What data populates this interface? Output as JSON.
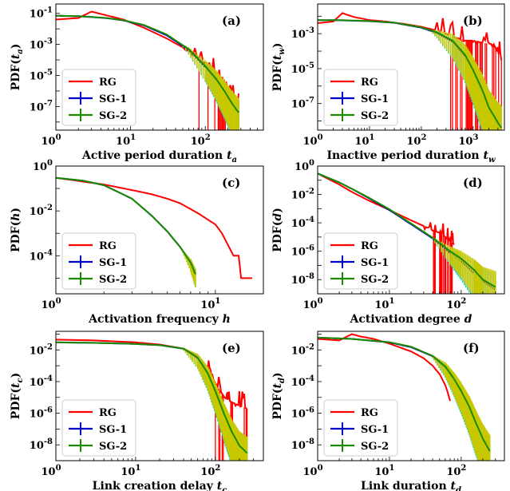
{
  "chart_data": [
    {
      "type": "line",
      "panel_label": "(a)",
      "xlabel": "Active period duration",
      "xlabel_var": "t",
      "xlabel_sub": "a",
      "ylabel_var": "t",
      "ylabel_sub": "a",
      "xscale": "log",
      "yscale": "log",
      "xlim": [
        1,
        600
      ],
      "ylim": [
        3e-09,
        0.4
      ],
      "xticks": [
        {
          "value": 1,
          "exp": "0"
        },
        {
          "value": 10,
          "exp": "1"
        },
        {
          "value": 100,
          "exp": "2"
        }
      ],
      "yticks": [
        {
          "value": 1e-07,
          "exp": "-7"
        },
        {
          "value": 1e-05,
          "exp": "-5"
        },
        {
          "value": 0.001,
          "exp": "-3"
        },
        {
          "value": 0.1,
          "exp": "-1"
        }
      ],
      "legend": {
        "position": "lower-left",
        "entries": [
          "RG",
          "SG-1",
          "SG-2"
        ]
      },
      "series": [
        {
          "name": "RG",
          "color": "#ff0000",
          "errorbars": false,
          "noise": "spiky",
          "x": [
            1,
            2,
            3,
            5,
            8,
            15,
            30,
            60,
            100,
            140,
            180,
            230,
            280
          ],
          "y": [
            0.04,
            0.05,
            0.13,
            0.07,
            0.04,
            0.012,
            0.0025,
            0.0004,
            6e-05,
            1e-05,
            3e-06,
            8e-07,
            2e-07
          ]
        },
        {
          "name": "SG-1",
          "color": "#0000cc",
          "errorbars": true,
          "x": [
            1,
            2,
            3,
            5,
            8,
            15,
            30,
            60,
            100,
            140,
            180,
            230,
            280
          ],
          "y": [
            0.07,
            0.065,
            0.058,
            0.048,
            0.035,
            0.017,
            0.004,
            0.00045,
            3.5e-05,
            5e-06,
            8e-07,
            1.2e-07,
            3e-08
          ]
        },
        {
          "name": "SG-2",
          "color": "#1a8a00",
          "errorbars": true,
          "x": [
            1,
            2,
            3,
            5,
            8,
            15,
            30,
            60,
            100,
            140,
            180,
            230,
            280
          ],
          "y": [
            0.07,
            0.066,
            0.059,
            0.049,
            0.036,
            0.018,
            0.0045,
            0.0005,
            4e-05,
            6e-06,
            1e-06,
            1.5e-07,
            4e-08
          ]
        }
      ]
    },
    {
      "type": "line",
      "panel_label": "(b)",
      "xlabel": "Inactive period duration",
      "xlabel_var": "t",
      "xlabel_sub": "w",
      "ylabel_var": "t",
      "ylabel_sub": "w",
      "xscale": "log",
      "yscale": "log",
      "xlim": [
        1,
        4000
      ],
      "ylim": [
        3e-09,
        0.05
      ],
      "xticks": [
        {
          "value": 1,
          "exp": "0"
        },
        {
          "value": 10,
          "exp": "1"
        },
        {
          "value": 100,
          "exp": "2"
        },
        {
          "value": 1000,
          "exp": "3"
        }
      ],
      "yticks": [
        {
          "value": 1e-07,
          "exp": "-7"
        },
        {
          "value": 1e-05,
          "exp": "-5"
        },
        {
          "value": 0.001,
          "exp": "-3"
        }
      ],
      "legend": {
        "position": "lower-left",
        "entries": [
          "RG",
          "SG-1",
          "SG-2"
        ]
      },
      "series": [
        {
          "name": "RG",
          "color": "#ff0000",
          "errorbars": false,
          "noise": "spiky",
          "x": [
            1,
            2,
            3,
            5,
            10,
            20,
            50,
            100,
            200,
            400,
            700,
            1000,
            1500,
            2500,
            3500
          ],
          "y": [
            0.004,
            0.005,
            0.015,
            0.009,
            0.006,
            0.005,
            0.0035,
            0.0025,
            0.0015,
            0.0007,
            0.0004,
            0.0004,
            0.0003,
            0.00025,
            3e-05
          ]
        },
        {
          "name": "SG-1",
          "color": "#0000cc",
          "errorbars": true,
          "x": [
            1,
            3,
            10,
            30,
            100,
            200,
            400,
            700,
            1000,
            1500,
            2000,
            3000,
            3500
          ],
          "y": [
            0.006,
            0.0058,
            0.0052,
            0.0042,
            0.0022,
            0.0011,
            0.00035,
            5e-05,
            6e-06,
            4e-07,
            4e-08,
            5e-09,
            3e-09
          ]
        },
        {
          "name": "SG-2",
          "color": "#1a8a00",
          "errorbars": true,
          "x": [
            1,
            3,
            10,
            30,
            100,
            200,
            400,
            700,
            1000,
            1500,
            2000,
            3000,
            3500
          ],
          "y": [
            0.006,
            0.0059,
            0.0053,
            0.0043,
            0.0023,
            0.0012,
            0.0004,
            6e-05,
            8e-06,
            6e-07,
            6e-08,
            8e-09,
            4e-09
          ]
        }
      ]
    },
    {
      "type": "line",
      "panel_label": "(c)",
      "xlabel": "Activation frequency",
      "xlabel_var": "h",
      "xlabel_sub": "",
      "ylabel_var": "h",
      "ylabel_sub": "",
      "xscale": "log",
      "yscale": "log",
      "xlim": [
        1,
        20
      ],
      "ylim": [
        2e-06,
        1
      ],
      "xticks": [
        {
          "value": 1,
          "exp": "0"
        },
        {
          "value": 10,
          "exp": "1"
        }
      ],
      "yticks": [
        {
          "value": 0.0001,
          "exp": "-4"
        },
        {
          "value": 0.01,
          "exp": "-2"
        },
        {
          "value": 1,
          "exp": "0"
        }
      ],
      "legend": {
        "position": "lower-left",
        "entries": [
          "RG",
          "SG-1",
          "SG-2"
        ]
      },
      "series": [
        {
          "name": "RG",
          "color": "#ff0000",
          "errorbars": false,
          "x": [
            1,
            2,
            3,
            4,
            5,
            6,
            7,
            8,
            9,
            10,
            11,
            12,
            13,
            14,
            14.5,
            15,
            16,
            17
          ],
          "y": [
            0.3,
            0.15,
            0.085,
            0.055,
            0.035,
            0.022,
            0.012,
            0.007,
            0.004,
            0.0025,
            0.001,
            0.0003,
            0.0001,
            0.0001,
            1e-05,
            1e-05,
            1e-05,
            1e-05
          ]
        },
        {
          "name": "SG-1",
          "color": "#0000cc",
          "errorbars": true,
          "x": [
            1,
            1.5,
            2,
            3,
            4,
            5,
            6,
            7,
            7.5
          ],
          "y": [
            0.3,
            0.22,
            0.14,
            0.035,
            0.006,
            0.0012,
            0.00025,
            5e-05,
            1.5e-05
          ]
        },
        {
          "name": "SG-2",
          "color": "#1a8a00",
          "errorbars": true,
          "x": [
            1,
            1.5,
            2,
            3,
            4,
            5,
            6,
            7,
            7.5
          ],
          "y": [
            0.3,
            0.22,
            0.14,
            0.035,
            0.006,
            0.0012,
            0.00025,
            5e-05,
            1.5e-05
          ]
        }
      ]
    },
    {
      "type": "line",
      "panel_label": "(d)",
      "xlabel": "Activation degree",
      "xlabel_var": "d",
      "xlabel_sub": "",
      "ylabel_var": "d",
      "ylabel_sub": "",
      "xscale": "log",
      "yscale": "log",
      "xlim": [
        1,
        400
      ],
      "ylim": [
        1e-09,
        1
      ],
      "xticks": [
        {
          "value": 1,
          "exp": "0"
        },
        {
          "value": 10,
          "exp": "1"
        },
        {
          "value": 100,
          "exp": "2"
        }
      ],
      "yticks": [
        {
          "value": 1e-08,
          "exp": "-8"
        },
        {
          "value": 1e-06,
          "exp": "-6"
        },
        {
          "value": 0.0001,
          "exp": "-4"
        },
        {
          "value": 0.01,
          "exp": "-2"
        },
        {
          "value": 1,
          "exp": "0"
        }
      ],
      "legend": {
        "position": "lower-left",
        "entries": [
          "RG",
          "SG-1",
          "SG-2"
        ]
      },
      "series": [
        {
          "name": "RG",
          "color": "#ff0000",
          "errorbars": false,
          "noise": "spiky",
          "x": [
            1,
            2,
            3,
            5,
            10,
            20,
            30,
            40,
            50,
            60,
            70,
            80
          ],
          "y": [
            0.3,
            0.05,
            0.015,
            0.004,
            0.0008,
            0.00015,
            6e-05,
            3e-05,
            2e-05,
            1e-05,
            5e-06,
            3e-06
          ]
        },
        {
          "name": "SG-1",
          "color": "#0000cc",
          "errorbars": true,
          "x": [
            1,
            2,
            3,
            5,
            10,
            20,
            40,
            70,
            100,
            150,
            200,
            300
          ],
          "y": [
            0.3,
            0.07,
            0.025,
            0.006,
            0.0008,
            8e-05,
            8e-06,
            8e-07,
            2e-07,
            3e-08,
            8e-09,
            2e-09
          ]
        },
        {
          "name": "SG-2",
          "color": "#1a8a00",
          "errorbars": true,
          "x": [
            1,
            2,
            3,
            5,
            10,
            20,
            40,
            70,
            100,
            150,
            200,
            300
          ],
          "y": [
            0.3,
            0.07,
            0.025,
            0.0065,
            0.0009,
            9e-05,
            9e-06,
            1e-06,
            3e-07,
            5e-08,
            1e-08,
            3e-09
          ]
        }
      ]
    },
    {
      "type": "line",
      "panel_label": "(e)",
      "xlabel": "Link creation delay",
      "xlabel_var": "t",
      "xlabel_sub": "c",
      "ylabel_var": "t",
      "ylabel_sub": "c",
      "xscale": "log",
      "yscale": "log",
      "xlim": [
        1,
        400
      ],
      "ylim": [
        1e-09,
        0.15
      ],
      "xticks": [
        {
          "value": 1,
          "exp": "0"
        },
        {
          "value": 10,
          "exp": "1"
        },
        {
          "value": 100,
          "exp": "2"
        }
      ],
      "yticks": [
        {
          "value": 1e-08,
          "exp": "-8"
        },
        {
          "value": 1e-06,
          "exp": "-6"
        },
        {
          "value": 0.0001,
          "exp": "-4"
        },
        {
          "value": 0.01,
          "exp": "-2"
        }
      ],
      "legend": {
        "position": "lower-left",
        "entries": [
          "RG",
          "SG-1",
          "SG-2"
        ]
      },
      "series": [
        {
          "name": "RG",
          "color": "#ff0000",
          "errorbars": false,
          "noise": "spiky",
          "x": [
            1,
            3,
            10,
            20,
            40,
            60,
            80,
            100,
            130,
            160,
            200,
            250
          ],
          "y": [
            0.045,
            0.04,
            0.03,
            0.022,
            0.012,
            0.004,
            0.0006,
            8e-05,
            1e-05,
            5e-06,
            3e-06,
            2e-06
          ]
        },
        {
          "name": "SG-1",
          "color": "#0000cc",
          "errorbars": true,
          "x": [
            1,
            3,
            10,
            20,
            40,
            60,
            80,
            100,
            130,
            160,
            200,
            250
          ],
          "y": [
            0.03,
            0.028,
            0.024,
            0.02,
            0.012,
            0.003,
            0.0003,
            2e-05,
            6e-07,
            5e-08,
            6e-09,
            2e-09
          ]
        },
        {
          "name": "SG-2",
          "color": "#1a8a00",
          "errorbars": true,
          "x": [
            1,
            3,
            10,
            20,
            40,
            60,
            80,
            100,
            130,
            160,
            200,
            250
          ],
          "y": [
            0.03,
            0.028,
            0.024,
            0.02,
            0.012,
            0.0032,
            0.00035,
            2.5e-05,
            8e-07,
            7e-08,
            9e-09,
            3e-09
          ]
        }
      ]
    },
    {
      "type": "line",
      "panel_label": "(f)",
      "xlabel": "Link duration",
      "xlabel_var": "t",
      "xlabel_sub": "d",
      "ylabel_var": "t",
      "ylabel_sub": "d",
      "xscale": "log",
      "yscale": "log",
      "xlim": [
        1,
        400
      ],
      "ylim": [
        1e-09,
        0.15
      ],
      "xticks": [
        {
          "value": 1,
          "exp": "0"
        },
        {
          "value": 10,
          "exp": "1"
        },
        {
          "value": 100,
          "exp": "2"
        }
      ],
      "yticks": [
        {
          "value": 1e-08,
          "exp": "-8"
        },
        {
          "value": 1e-06,
          "exp": "-6"
        },
        {
          "value": 0.0001,
          "exp": "-4"
        },
        {
          "value": 0.01,
          "exp": "-2"
        }
      ],
      "legend": {
        "position": "lower-left",
        "entries": [
          "RG",
          "SG-1",
          "SG-2"
        ]
      },
      "series": [
        {
          "name": "RG",
          "color": "#ff0000",
          "errorbars": false,
          "x": [
            1,
            2,
            3,
            4,
            6,
            10,
            20,
            30,
            40,
            50,
            60,
            65,
            70
          ],
          "y": [
            0.05,
            0.04,
            0.1,
            0.07,
            0.05,
            0.025,
            0.008,
            0.003,
            0.001,
            0.0003,
            6e-05,
            2e-05,
            6e-06
          ]
        },
        {
          "name": "SG-1",
          "color": "#0000cc",
          "errorbars": true,
          "x": [
            1,
            3,
            10,
            20,
            40,
            60,
            80,
            100,
            130,
            160,
            200,
            250
          ],
          "y": [
            0.06,
            0.05,
            0.03,
            0.015,
            0.004,
            0.0008,
            0.00012,
            2e-05,
            2e-06,
            2e-07,
            2e-08,
            3e-09
          ]
        },
        {
          "name": "SG-2",
          "color": "#1a8a00",
          "errorbars": true,
          "x": [
            1,
            3,
            10,
            20,
            40,
            60,
            80,
            100,
            130,
            160,
            200,
            250
          ],
          "y": [
            0.06,
            0.05,
            0.031,
            0.016,
            0.0042,
            0.0009,
            0.00014,
            2.5e-05,
            2.5e-06,
            2.5e-07,
            2.5e-08,
            4e-09
          ]
        }
      ]
    }
  ]
}
